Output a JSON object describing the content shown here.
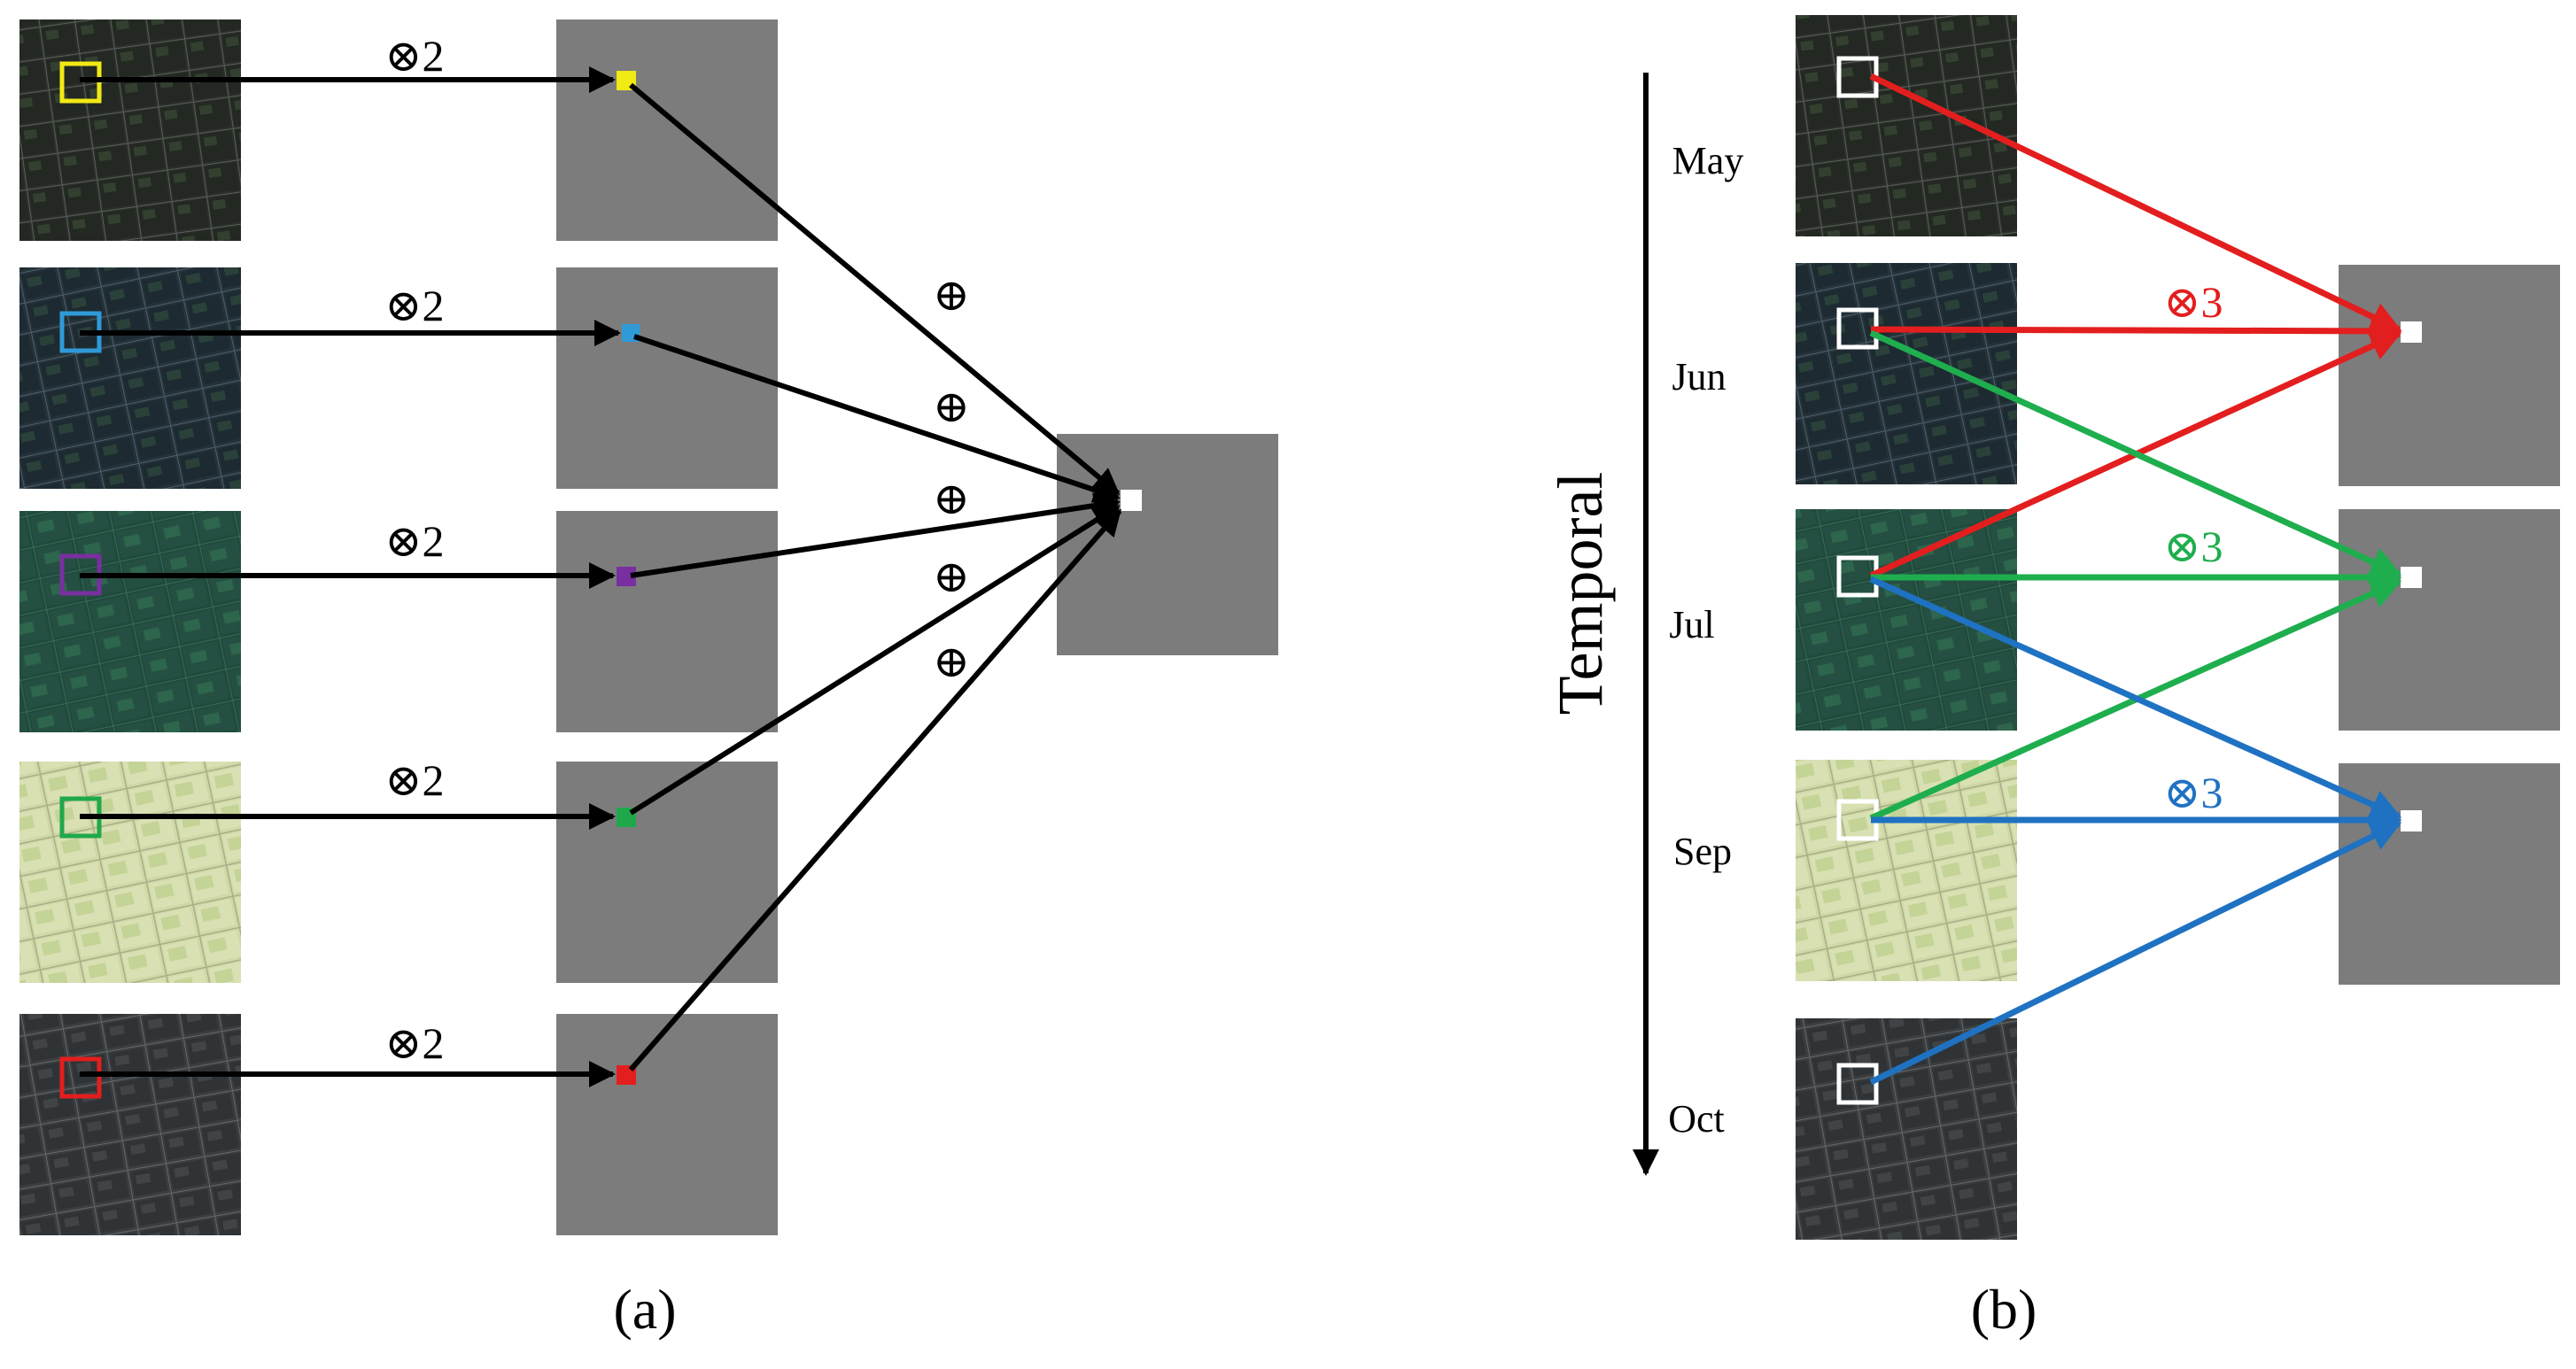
{
  "panel_a": {
    "caption": "(a)",
    "multiply_label": "⊗2",
    "plus_label": "⊕",
    "rows": [
      {
        "box_color": "#f2ea14",
        "image": "dark-field-1"
      },
      {
        "box_color": "#2f9ad8",
        "image": "dark-field-2"
      },
      {
        "box_color": "#7a2fa0",
        "image": "green-field"
      },
      {
        "box_color": "#1fa84a",
        "image": "light-field"
      },
      {
        "box_color": "#e31e1e",
        "image": "gray-field"
      }
    ]
  },
  "panel_b": {
    "caption": "(b)",
    "axis_label": "Temporal",
    "months": [
      "May",
      "Jun",
      "Jul",
      "Sep",
      "Oct"
    ],
    "groups": [
      {
        "name": "red",
        "color": "#e31e1e",
        "multiply_label": "⊗3"
      },
      {
        "name": "green",
        "color": "#1fae4e",
        "multiply_label": "⊗3"
      },
      {
        "name": "blue",
        "color": "#1f72c2",
        "multiply_label": "⊗3"
      }
    ]
  },
  "colors": {
    "gray_map": "#7c7c7c",
    "arrow": "#000000",
    "frame": "#ffffff"
  }
}
